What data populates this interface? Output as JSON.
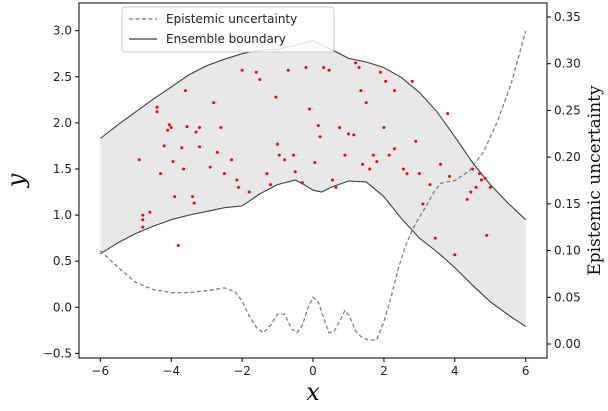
{
  "chart_data": {
    "type": "area",
    "xlabel": "x",
    "ylabel": "y",
    "ylabel_right": "Epistemic uncertainty",
    "xlim": [
      -6.6,
      6.6
    ],
    "ylim": [
      -0.55,
      3.3
    ],
    "ylim_right": [
      -0.015,
      0.365
    ],
    "xticks": [
      -6,
      -4,
      -2,
      0,
      2,
      4,
      6
    ],
    "yticks": [
      -0.5,
      0.0,
      0.5,
      1.0,
      1.5,
      2.0,
      2.5,
      3.0
    ],
    "yticks_right": [
      0.0,
      0.05,
      0.1,
      0.15,
      0.2,
      0.25,
      0.3,
      0.35
    ],
    "grid": false,
    "legend_position": "top-left",
    "legend": [
      {
        "label": "Epistemic uncertainty",
        "style": "dashed",
        "color": "#808080"
      },
      {
        "label": "Ensemble boundary",
        "style": "solid",
        "color": "#404040"
      }
    ],
    "colors": {
      "band_fill": "#e8e8e8",
      "boundary": "#404040",
      "uncertainty": "#808080",
      "points": "#ff0000"
    },
    "upper_boundary": [
      [
        -6,
        1.83
      ],
      [
        -5.5,
        1.98
      ],
      [
        -5,
        2.12
      ],
      [
        -4.5,
        2.26
      ],
      [
        -4,
        2.39
      ],
      [
        -3.5,
        2.52
      ],
      [
        -3,
        2.62
      ],
      [
        -2.5,
        2.69
      ],
      [
        -2,
        2.75
      ],
      [
        -1.5,
        2.79
      ],
      [
        -1,
        2.8
      ],
      [
        -0.5,
        2.84
      ],
      [
        0,
        2.89
      ],
      [
        0.5,
        2.8
      ],
      [
        1,
        2.7
      ],
      [
        1.5,
        2.66
      ],
      [
        2,
        2.6
      ],
      [
        2.5,
        2.49
      ],
      [
        3,
        2.33
      ],
      [
        3.5,
        2.12
      ],
      [
        4,
        1.85
      ],
      [
        4.5,
        1.57
      ],
      [
        5,
        1.33
      ],
      [
        5.5,
        1.13
      ],
      [
        6,
        0.95
      ]
    ],
    "lower_boundary": [
      [
        -6,
        0.58
      ],
      [
        -5.5,
        0.7
      ],
      [
        -5,
        0.8
      ],
      [
        -4.5,
        0.88
      ],
      [
        -4,
        0.95
      ],
      [
        -3.5,
        1.0
      ],
      [
        -3,
        1.04
      ],
      [
        -2.5,
        1.08
      ],
      [
        -2,
        1.1
      ],
      [
        -1.5,
        1.23
      ],
      [
        -1,
        1.33
      ],
      [
        -0.5,
        1.38
      ],
      [
        -0.25,
        1.33
      ],
      [
        0,
        1.27
      ],
      [
        0.25,
        1.25
      ],
      [
        0.5,
        1.3
      ],
      [
        1,
        1.37
      ],
      [
        1.5,
        1.36
      ],
      [
        2,
        1.2
      ],
      [
        2.5,
        0.96
      ],
      [
        3,
        0.75
      ],
      [
        3.5,
        0.6
      ],
      [
        4,
        0.43
      ],
      [
        4.5,
        0.24
      ],
      [
        5,
        0.06
      ],
      [
        5.5,
        -0.08
      ],
      [
        6,
        -0.21
      ]
    ],
    "uncertainty": [
      [
        -6,
        0.1
      ],
      [
        -5.5,
        0.082
      ],
      [
        -5,
        0.066
      ],
      [
        -4.5,
        0.058
      ],
      [
        -4,
        0.055
      ],
      [
        -3.5,
        0.055
      ],
      [
        -3,
        0.057
      ],
      [
        -2.5,
        0.06
      ],
      [
        -2.2,
        0.056
      ],
      [
        -2,
        0.046
      ],
      [
        -1.8,
        0.03
      ],
      [
        -1.6,
        0.018
      ],
      [
        -1.4,
        0.012
      ],
      [
        -1.2,
        0.02
      ],
      [
        -1,
        0.032
      ],
      [
        -0.8,
        0.032
      ],
      [
        -0.6,
        0.016
      ],
      [
        -0.45,
        0.012
      ],
      [
        -0.3,
        0.02
      ],
      [
        -0.15,
        0.038
      ],
      [
        0,
        0.05
      ],
      [
        0.15,
        0.045
      ],
      [
        0.3,
        0.028
      ],
      [
        0.45,
        0.012
      ],
      [
        0.6,
        0.014
      ],
      [
        0.75,
        0.024
      ],
      [
        0.9,
        0.036
      ],
      [
        1.05,
        0.028
      ],
      [
        1.2,
        0.014
      ],
      [
        1.35,
        0.008
      ],
      [
        1.5,
        0.005
      ],
      [
        1.65,
        0.004
      ],
      [
        1.8,
        0.005
      ],
      [
        2,
        0.024
      ],
      [
        2.2,
        0.05
      ],
      [
        2.4,
        0.08
      ],
      [
        2.6,
        0.104
      ],
      [
        2.8,
        0.122
      ],
      [
        3,
        0.136
      ],
      [
        3.2,
        0.148
      ],
      [
        3.4,
        0.162
      ],
      [
        3.6,
        0.172
      ],
      [
        4,
        0.175
      ],
      [
        4.4,
        0.185
      ],
      [
        4.8,
        0.205
      ],
      [
        5.2,
        0.238
      ],
      [
        5.6,
        0.28
      ],
      [
        6,
        0.335
      ]
    ],
    "points": [
      [
        -4.9,
        1.6
      ],
      [
        -4.8,
        1.0
      ],
      [
        -4.8,
        0.95
      ],
      [
        -4.8,
        0.87
      ],
      [
        -4.6,
        1.03
      ],
      [
        -4.4,
        2.17
      ],
      [
        -4.4,
        2.12
      ],
      [
        -4.3,
        1.45
      ],
      [
        -4.2,
        1.75
      ],
      [
        -4.1,
        1.92
      ],
      [
        -4.05,
        1.98
      ],
      [
        -4.0,
        1.95
      ],
      [
        -3.95,
        1.58
      ],
      [
        -3.9,
        1.2
      ],
      [
        -3.8,
        0.67
      ],
      [
        -3.7,
        1.73
      ],
      [
        -3.65,
        1.5
      ],
      [
        -3.6,
        2.35
      ],
      [
        -3.55,
        1.96
      ],
      [
        -3.4,
        1.2
      ],
      [
        -3.35,
        1.13
      ],
      [
        -3.3,
        1.9
      ],
      [
        -3.2,
        1.95
      ],
      [
        -3.2,
        1.74
      ],
      [
        -2.9,
        1.52
      ],
      [
        -2.8,
        2.22
      ],
      [
        -2.7,
        1.68
      ],
      [
        -2.6,
        1.95
      ],
      [
        -2.5,
        1.45
      ],
      [
        -2.3,
        1.6
      ],
      [
        -2.15,
        1.38
      ],
      [
        -2.1,
        1.3
      ],
      [
        -2.0,
        2.57
      ],
      [
        -1.8,
        1.25
      ],
      [
        -1.6,
        2.55
      ],
      [
        -1.5,
        2.47
      ],
      [
        -1.3,
        1.45
      ],
      [
        -1.2,
        1.33
      ],
      [
        -1.05,
        2.28
      ],
      [
        -1.0,
        1.77
      ],
      [
        -0.95,
        1.65
      ],
      [
        -0.8,
        1.6
      ],
      [
        -0.7,
        2.57
      ],
      [
        -0.55,
        1.65
      ],
      [
        -0.5,
        1.47
      ],
      [
        -0.3,
        1.35
      ],
      [
        -0.2,
        2.6
      ],
      [
        -0.1,
        2.15
      ],
      [
        0.05,
        1.57
      ],
      [
        0.15,
        1.97
      ],
      [
        0.2,
        1.85
      ],
      [
        0.3,
        2.6
      ],
      [
        0.45,
        2.57
      ],
      [
        0.55,
        1.38
      ],
      [
        0.65,
        1.3
      ],
      [
        0.75,
        1.95
      ],
      [
        0.9,
        1.65
      ],
      [
        1.0,
        1.88
      ],
      [
        1.15,
        1.87
      ],
      [
        1.2,
        2.65
      ],
      [
        1.3,
        2.6
      ],
      [
        1.35,
        2.35
      ],
      [
        1.4,
        1.55
      ],
      [
        1.5,
        2.22
      ],
      [
        1.6,
        1.5
      ],
      [
        1.7,
        1.65
      ],
      [
        1.8,
        1.58
      ],
      [
        1.9,
        2.55
      ],
      [
        2.0,
        1.95
      ],
      [
        2.05,
        2.45
      ],
      [
        2.15,
        1.65
      ],
      [
        2.3,
        1.72
      ],
      [
        2.3,
        2.35
      ],
      [
        2.55,
        1.5
      ],
      [
        2.65,
        1.45
      ],
      [
        2.8,
        2.45
      ],
      [
        2.9,
        1.8
      ],
      [
        3.0,
        1.45
      ],
      [
        3.1,
        1.12
      ],
      [
        3.3,
        1.33
      ],
      [
        3.45,
        0.75
      ],
      [
        3.6,
        1.55
      ],
      [
        3.8,
        2.1
      ],
      [
        3.85,
        1.42
      ],
      [
        4.0,
        0.57
      ],
      [
        4.35,
        1.17
      ],
      [
        4.45,
        1.25
      ],
      [
        4.5,
        1.5
      ],
      [
        4.6,
        1.3
      ],
      [
        4.7,
        1.45
      ],
      [
        4.75,
        1.38
      ],
      [
        4.85,
        1.4
      ],
      [
        4.9,
        0.78
      ],
      [
        5.0,
        1.3
      ]
    ]
  }
}
